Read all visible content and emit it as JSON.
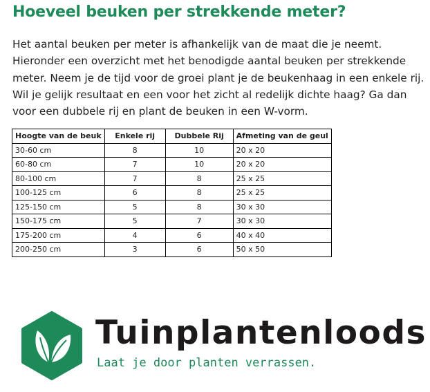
{
  "title": "Hoeveel beuken per strekkende meter?",
  "intro": "Het aantal beuken per meter is afhankelijk van de maat die je neemt. Hieronder een overzicht met het benodigde aantal beuken per strekkende meter. Neem je de tijd voor de groei plant je de beukenhaag in een enkele rij. Wil je gelijk resultaat en een voor het zicht al redelijk dichte haag? Ga dan voor een dubbele rij en plant de beuken in een W-vorm.",
  "table": {
    "headers": [
      "Hoogte van de beuk",
      "Enkele rij",
      "Dubbele Rij",
      "Afmeting van de geul"
    ],
    "rows": [
      [
        "30-60 cm",
        "8",
        "10",
        "20 x 20"
      ],
      [
        "60-80 cm",
        "7",
        "10",
        "20 x 20"
      ],
      [
        "80-100 cm",
        "7",
        "8",
        "25 x 25"
      ],
      [
        "100-125 cm",
        "6",
        "8",
        "25 x 25"
      ],
      [
        "125-150 cm",
        "5",
        "8",
        "30 x 30"
      ],
      [
        "150-175 cm",
        "5",
        "7",
        "30 x 30"
      ],
      [
        "175-200 cm",
        "4",
        "6",
        "40 x 40"
      ],
      [
        "200-250 cm",
        "3",
        "6",
        "50 x 50"
      ]
    ]
  },
  "logo": {
    "brand": "Tuinplantenloods",
    "tagline": "Laat je door planten verrassen.",
    "icon": "leaf-hexagon-icon",
    "color": "#1e8a5a"
  }
}
